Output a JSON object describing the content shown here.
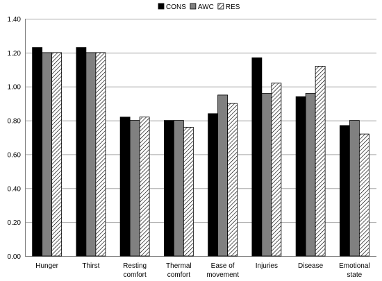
{
  "chart_data": {
    "type": "bar",
    "categories": [
      [
        "Hunger"
      ],
      [
        "Thirst"
      ],
      [
        "Resting",
        "comfort"
      ],
      [
        "Thermal",
        "comfort"
      ],
      [
        "Ease of",
        "movement"
      ],
      [
        "Injuries"
      ],
      [
        "Disease"
      ],
      [
        "Emotional",
        "state"
      ]
    ],
    "series": [
      {
        "name": "CONS",
        "values": [
          1.23,
          1.23,
          0.82,
          0.8,
          0.84,
          1.17,
          0.94,
          0.77
        ],
        "fill": "#000000"
      },
      {
        "name": "AWC",
        "values": [
          1.2,
          1.2,
          0.8,
          0.8,
          0.95,
          0.96,
          0.96,
          0.8
        ],
        "fill": "#808080"
      },
      {
        "name": "RES",
        "values": [
          1.2,
          1.2,
          0.82,
          0.76,
          0.9,
          1.02,
          1.12,
          0.72
        ],
        "fill": "hatch"
      }
    ],
    "ylim": [
      0,
      1.4
    ],
    "yticks": [
      "0.00",
      "0.20",
      "0.40",
      "0.60",
      "0.80",
      "1.00",
      "1.20",
      "1.40"
    ],
    "grid": true,
    "legend": "top-center",
    "title": "",
    "xlabel": "",
    "ylabel": ""
  }
}
